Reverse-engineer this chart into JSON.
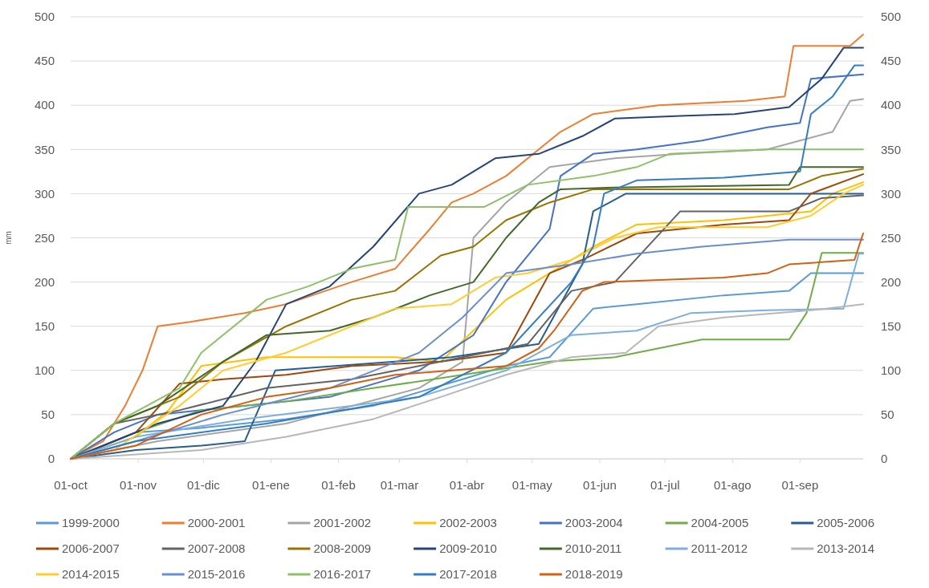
{
  "chart_data": {
    "type": "line",
    "ylabel": "mm",
    "xlim": [
      "2001-10-01",
      "2002-09-30"
    ],
    "xticks": [
      {
        "value": "2001-10-01",
        "label": "01-oct"
      },
      {
        "value": "2001-11-01",
        "label": "01-nov"
      },
      {
        "value": "2001-12-01",
        "label": "01-dic"
      },
      {
        "value": "2002-01-01",
        "label": "01-ene"
      },
      {
        "value": "2002-02-01",
        "label": "01-feb"
      },
      {
        "value": "2002-03-01",
        "label": "01-mar"
      },
      {
        "value": "2002-04-01",
        "label": "01-abr"
      },
      {
        "value": "2002-05-01",
        "label": "01-may"
      },
      {
        "value": "2002-06-01",
        "label": "01-jun"
      },
      {
        "value": "2002-07-01",
        "label": "01-jul"
      },
      {
        "value": "2002-08-01",
        "label": "01-ago"
      },
      {
        "value": "2002-09-01",
        "label": "01-sep"
      }
    ],
    "ylim": [
      0,
      500
    ],
    "yticks": [
      0,
      50,
      100,
      150,
      200,
      250,
      300,
      350,
      400,
      450,
      500
    ],
    "y2lim": [
      0,
      500
    ],
    "y2ticks": [
      0,
      50,
      100,
      150,
      200,
      250,
      300,
      350,
      400,
      450,
      500
    ],
    "grid": "y",
    "legend": "bottom",
    "line_style": "solid",
    "marker": "none",
    "series": [
      {
        "name": "1999-2000",
        "color": "#5b9bd5",
        "x": [
          "2001-10-01",
          "2001-10-31",
          "2001-11-30",
          "2002-01-08",
          "2002-02-17",
          "2002-03-30",
          "2002-04-19",
          "2002-05-09",
          "2002-05-29",
          "2002-06-18",
          "2002-07-28",
          "2002-08-27",
          "2002-09-06",
          "2002-09-30"
        ],
        "values": [
          0,
          30,
          35,
          45,
          60,
          90,
          105,
          115,
          170,
          175,
          185,
          190,
          210,
          210
        ]
      },
      {
        "name": "2000-2001",
        "color": "#ed7d31",
        "x": [
          "2001-10-01",
          "2001-10-16",
          "2001-10-26",
          "2001-11-03",
          "2001-11-10",
          "2001-11-25",
          "2001-12-20",
          "2002-01-08",
          "2002-02-07",
          "2002-02-27",
          "2002-03-15",
          "2002-03-25",
          "2002-04-04",
          "2002-04-19",
          "2002-05-04",
          "2002-05-14",
          "2002-05-29",
          "2002-06-28",
          "2002-08-07",
          "2002-08-25",
          "2002-08-29",
          "2002-09-24",
          "2002-09-30"
        ],
        "values": [
          0,
          20,
          60,
          100,
          150,
          155,
          165,
          175,
          200,
          215,
          260,
          290,
          300,
          320,
          350,
          370,
          390,
          400,
          405,
          410,
          467,
          467,
          480
        ]
      },
      {
        "name": "2001-2002",
        "color": "#a5a5a5",
        "x": [
          "2001-10-01",
          "2001-11-10",
          "2002-01-08",
          "2002-03-10",
          "2002-03-30",
          "2002-04-04",
          "2002-04-19",
          "2002-05-09",
          "2002-06-08",
          "2002-07-08",
          "2002-08-17",
          "2002-09-01",
          "2002-09-16",
          "2002-09-24",
          "2002-09-30"
        ],
        "values": [
          0,
          20,
          40,
          80,
          110,
          250,
          290,
          330,
          340,
          345,
          350,
          360,
          370,
          405,
          407
        ]
      },
      {
        "name": "2002-2003",
        "color": "#ffc000",
        "x": [
          "2001-10-01",
          "2001-10-31",
          "2001-11-15",
          "2001-11-30",
          "2001-12-30",
          "2002-01-28",
          "2002-02-27",
          "2002-03-20",
          "2002-04-19",
          "2002-05-09",
          "2002-05-29",
          "2002-06-18",
          "2002-07-28",
          "2002-09-06",
          "2002-09-16",
          "2002-09-30"
        ],
        "values": [
          0,
          25,
          55,
          105,
          115,
          115,
          115,
          110,
          180,
          210,
          240,
          265,
          270,
          280,
          300,
          313
        ]
      },
      {
        "name": "2003-2004",
        "color": "#4472c4",
        "x": [
          "2001-10-01",
          "2001-10-21",
          "2001-11-10",
          "2001-12-20",
          "2002-01-28",
          "2002-03-10",
          "2002-04-04",
          "2002-04-19",
          "2002-05-09",
          "2002-05-14",
          "2002-05-29",
          "2002-06-18",
          "2002-07-18",
          "2002-08-17",
          "2002-09-01",
          "2002-09-06",
          "2002-09-30"
        ],
        "values": [
          0,
          30,
          50,
          60,
          70,
          100,
          140,
          200,
          260,
          320,
          345,
          350,
          360,
          375,
          380,
          430,
          435
        ]
      },
      {
        "name": "2004-2005",
        "color": "#70ad47",
        "x": [
          "2001-10-01",
          "2001-10-31",
          "2001-11-30",
          "2002-01-08",
          "2002-02-17",
          "2002-03-30",
          "2002-05-09",
          "2002-06-08",
          "2002-06-28",
          "2002-07-18",
          "2002-08-27",
          "2002-09-04",
          "2002-09-11",
          "2002-09-30"
        ],
        "values": [
          0,
          30,
          55,
          65,
          80,
          95,
          110,
          115,
          125,
          135,
          135,
          165,
          233,
          233
        ]
      },
      {
        "name": "2005-2006",
        "color": "#255e91",
        "x": [
          "2001-10-01",
          "2001-10-31",
          "2001-11-30",
          "2001-12-20",
          "2002-01-03",
          "2002-02-27",
          "2002-03-25",
          "2002-05-04",
          "2002-05-24",
          "2002-05-29",
          "2002-06-13",
          "2002-07-28",
          "2002-09-30"
        ],
        "values": [
          0,
          10,
          15,
          20,
          100,
          110,
          115,
          130,
          220,
          280,
          300,
          300,
          300
        ]
      },
      {
        "name": "2006-2007",
        "color": "#9e480e",
        "x": [
          "2001-10-01",
          "2001-10-31",
          "2001-11-20",
          "2001-12-10",
          "2002-01-08",
          "2002-02-07",
          "2002-03-20",
          "2002-04-04",
          "2002-04-19",
          "2002-04-29",
          "2002-05-09",
          "2002-05-24",
          "2002-06-18",
          "2002-07-28",
          "2002-08-27",
          "2002-09-06",
          "2002-09-30"
        ],
        "values": [
          0,
          30,
          85,
          90,
          95,
          105,
          110,
          115,
          120,
          165,
          210,
          225,
          255,
          265,
          270,
          300,
          322
        ]
      },
      {
        "name": "2007-2008",
        "color": "#636363",
        "x": [
          "2001-10-01",
          "2001-10-21",
          "2001-11-20",
          "2001-12-30",
          "2002-02-07",
          "2002-03-20",
          "2002-04-09",
          "2002-04-29",
          "2002-05-19",
          "2002-06-08",
          "2002-07-08",
          "2002-08-27",
          "2002-09-11",
          "2002-09-30"
        ],
        "values": [
          0,
          40,
          55,
          80,
          90,
          110,
          120,
          130,
          190,
          200,
          280,
          280,
          295,
          298
        ]
      },
      {
        "name": "2008-2009",
        "color": "#997300",
        "x": [
          "2001-10-01",
          "2001-10-21",
          "2001-11-20",
          "2001-12-10",
          "2002-01-08",
          "2002-02-07",
          "2002-02-27",
          "2002-03-20",
          "2002-04-04",
          "2002-04-19",
          "2002-05-09",
          "2002-05-29",
          "2002-08-27",
          "2002-09-11",
          "2002-09-30"
        ],
        "values": [
          0,
          40,
          70,
          110,
          150,
          180,
          190,
          230,
          240,
          270,
          290,
          305,
          305,
          320,
          328
        ]
      },
      {
        "name": "2009-2010",
        "color": "#264478",
        "x": [
          "2001-10-01",
          "2001-10-21",
          "2001-11-10",
          "2001-12-10",
          "2001-12-25",
          "2002-01-08",
          "2002-01-28",
          "2002-02-17",
          "2002-03-10",
          "2002-03-25",
          "2002-04-14",
          "2002-05-04",
          "2002-05-24",
          "2002-06-08",
          "2002-07-08",
          "2002-08-02",
          "2002-08-27",
          "2002-09-11",
          "2002-09-21",
          "2002-09-30"
        ],
        "values": [
          0,
          20,
          40,
          60,
          110,
          175,
          195,
          240,
          300,
          310,
          340,
          345,
          365,
          385,
          388,
          390,
          398,
          430,
          465,
          465
        ]
      },
      {
        "name": "2010-2011",
        "color": "#43682b",
        "x": [
          "2001-10-01",
          "2001-10-21",
          "2001-11-10",
          "2001-12-10",
          "2001-12-30",
          "2002-01-28",
          "2002-02-17",
          "2002-03-15",
          "2002-04-04",
          "2002-04-19",
          "2002-05-04",
          "2002-05-14",
          "2002-06-08",
          "2002-08-27",
          "2002-09-01",
          "2002-09-30"
        ],
        "values": [
          0,
          40,
          60,
          110,
          140,
          145,
          160,
          185,
          200,
          250,
          290,
          305,
          307,
          310,
          330,
          330
        ]
      },
      {
        "name": "2011-2012",
        "color": "#7cafdd",
        "x": [
          "2001-10-01",
          "2001-10-31",
          "2001-12-20",
          "2002-02-07",
          "2002-03-10",
          "2002-04-19",
          "2002-05-19",
          "2002-06-18",
          "2002-07-13",
          "2002-08-17",
          "2002-09-21",
          "2002-09-28",
          "2002-09-30"
        ],
        "values": [
          0,
          25,
          45,
          60,
          70,
          100,
          140,
          145,
          165,
          168,
          170,
          232,
          232
        ]
      },
      {
        "name": "2013-2014",
        "color": "#b7b7b7",
        "x": [
          "2001-10-01",
          "2001-11-30",
          "2002-01-08",
          "2002-02-17",
          "2002-03-20",
          "2002-04-19",
          "2002-05-19",
          "2002-06-13",
          "2002-06-28",
          "2002-07-28",
          "2002-09-06",
          "2002-09-30"
        ],
        "values": [
          0,
          10,
          25,
          45,
          70,
          95,
          115,
          120,
          150,
          160,
          168,
          175
        ]
      },
      {
        "name": "2014-2015",
        "color": "#ffcd33",
        "x": [
          "2001-10-01",
          "2001-10-21",
          "2001-11-20",
          "2001-12-10",
          "2002-01-08",
          "2002-02-07",
          "2002-02-27",
          "2002-03-25",
          "2002-04-14",
          "2002-04-29",
          "2002-05-19",
          "2002-06-08",
          "2002-06-28",
          "2002-08-17",
          "2002-09-06",
          "2002-09-21",
          "2002-09-30"
        ],
        "values": [
          0,
          10,
          60,
          100,
          120,
          150,
          170,
          175,
          205,
          210,
          225,
          250,
          262,
          262,
          275,
          300,
          310
        ]
      },
      {
        "name": "2015-2016",
        "color": "#698ed0",
        "x": [
          "2001-10-01",
          "2001-10-31",
          "2001-12-10",
          "2002-01-28",
          "2002-03-10",
          "2002-03-30",
          "2002-04-19",
          "2002-05-19",
          "2002-06-18",
          "2002-07-18",
          "2002-08-27",
          "2002-09-30"
        ],
        "values": [
          0,
          20,
          50,
          80,
          120,
          160,
          210,
          220,
          232,
          240,
          248,
          248
        ]
      },
      {
        "name": "2016-2017",
        "color": "#8cc168",
        "x": [
          "2001-10-01",
          "2001-10-21",
          "2001-11-20",
          "2001-11-30",
          "2001-12-30",
          "2002-01-18",
          "2002-02-07",
          "2002-02-17",
          "2002-02-27",
          "2002-03-05",
          "2002-04-09",
          "2002-04-29",
          "2002-05-29",
          "2002-06-18",
          "2002-07-03",
          "2002-08-17",
          "2002-09-30"
        ],
        "values": [
          0,
          40,
          80,
          120,
          180,
          195,
          215,
          220,
          225,
          285,
          285,
          310,
          320,
          330,
          345,
          350,
          350
        ]
      },
      {
        "name": "2017-2018",
        "color": "#327dc2",
        "x": [
          "2001-10-01",
          "2001-10-31",
          "2001-12-30",
          "2002-03-10",
          "2002-04-19",
          "2002-05-19",
          "2002-05-29",
          "2002-06-03",
          "2002-06-18",
          "2002-07-28",
          "2002-09-01",
          "2002-09-06",
          "2002-09-16",
          "2002-09-26",
          "2002-09-30"
        ],
        "values": [
          0,
          20,
          40,
          70,
          120,
          200,
          240,
          300,
          315,
          318,
          325,
          390,
          410,
          445,
          445
        ]
      },
      {
        "name": "2018-2019",
        "color": "#d26012",
        "x": [
          "2001-10-01",
          "2001-10-31",
          "2001-11-30",
          "2001-12-30",
          "2002-01-28",
          "2002-02-27",
          "2002-03-25",
          "2002-04-19",
          "2002-05-04",
          "2002-05-11",
          "2002-05-24",
          "2002-06-03",
          "2002-07-28",
          "2002-08-17",
          "2002-08-27",
          "2002-09-26",
          "2002-09-30"
        ],
        "values": [
          0,
          15,
          50,
          70,
          80,
          95,
          100,
          105,
          125,
          145,
          190,
          200,
          205,
          210,
          220,
          225,
          255
        ]
      }
    ]
  }
}
